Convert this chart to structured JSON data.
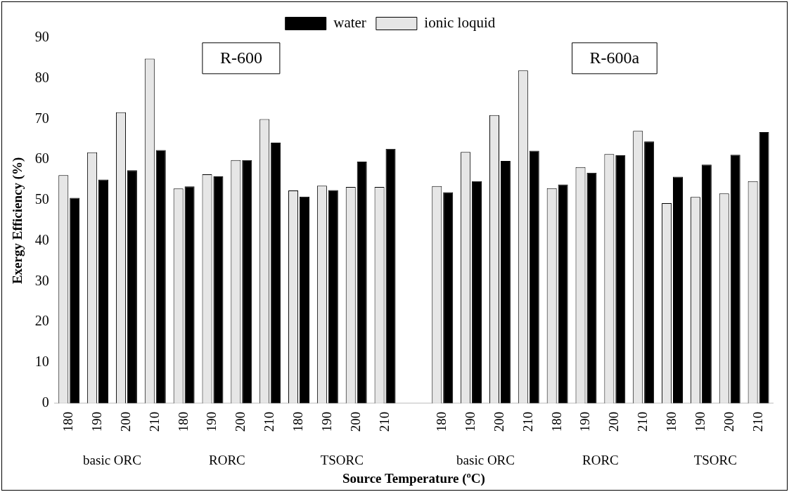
{
  "chart_data": {
    "type": "bar",
    "ylabel": "Exergy Efficiency (%)",
    "xlabel": "Source Temperature (ºC)",
    "categories": [
      "180",
      "190",
      "200",
      "210",
      "180",
      "190",
      "200",
      "210",
      "180",
      "190",
      "200",
      "210",
      null,
      "180",
      "190",
      "200",
      "210",
      "180",
      "190",
      "200",
      "210",
      "180",
      "190",
      "200",
      "210"
    ],
    "series": [
      {
        "name": "ionic loquid",
        "color": "#e6e6e6",
        "values": [
          56.2,
          61.8,
          71.7,
          84.9,
          52.9,
          56.4,
          59.9,
          70.0,
          52.4,
          53.6,
          53.3,
          53.3,
          null,
          53.5,
          61.9,
          71.0,
          82.0,
          53.0,
          58.2,
          61.4,
          67.1,
          49.3,
          50.8,
          51.7,
          54.7
        ]
      },
      {
        "name": "water",
        "color": "#000000",
        "values": [
          50.6,
          55.1,
          57.4,
          62.4,
          53.4,
          55.9,
          59.9,
          64.2,
          50.9,
          52.5,
          59.5,
          62.7,
          null,
          52.0,
          54.7,
          59.7,
          62.2,
          53.9,
          56.8,
          61.1,
          64.5,
          55.8,
          58.8,
          61.2,
          66.8
        ]
      }
    ],
    "ylim": [
      0,
      90
    ],
    "yticks": [
      0,
      10,
      20,
      30,
      40,
      50,
      60,
      70,
      80,
      90
    ],
    "grid": false,
    "legend": "top",
    "annotations": [
      "R-600",
      "R-600a",
      "basic ORC",
      "RORC",
      "TSORC",
      "basic ORC",
      "RORC",
      "TSORC"
    ]
  }
}
